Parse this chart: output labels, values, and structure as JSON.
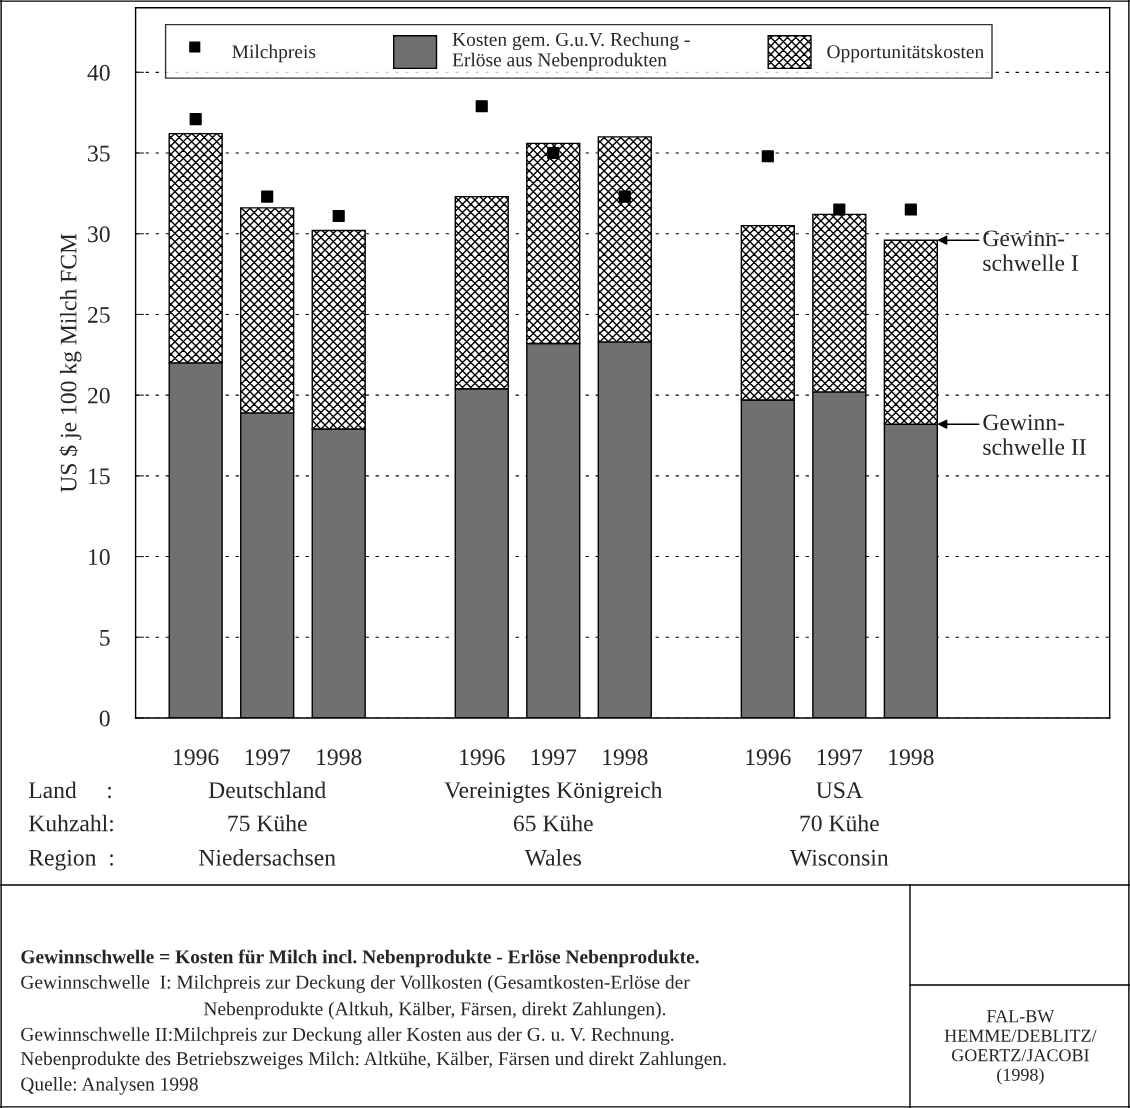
{
  "chart_data": {
    "type": "bar",
    "stacked": true,
    "ylabel": "US $ je 100 kg Milch FCM",
    "categories": [
      "1996",
      "1997",
      "1998",
      null,
      "1996",
      "1997",
      "1998",
      null,
      "1996",
      "1997",
      "1998"
    ],
    "series": [
      {
        "name": "Kosten gem. G.u.V. Rechung -\nErlöse aus Nebenprodukten",
        "color": "#707070",
        "values": [
          22.0,
          18.9,
          17.9,
          null,
          20.4,
          23.2,
          23.3,
          null,
          19.7,
          20.2,
          18.2
        ]
      },
      {
        "name": "Opportunitätskosten",
        "color": "#000000",
        "values": [
          14.2,
          12.7,
          12.3,
          null,
          11.9,
          12.4,
          12.7,
          null,
          10.8,
          11.0,
          11.4
        ]
      },
      {
        "name": "Milchpreis",
        "type": "scatter",
        "color": "#000000",
        "marker": "square",
        "values": [
          37.1,
          32.3,
          31.1,
          null,
          37.9,
          35.0,
          32.3,
          null,
          34.8,
          31.5,
          31.5
        ]
      }
    ],
    "ylim": [
      0,
      44
    ],
    "yticks": [
      0,
      5,
      10,
      15,
      20,
      25,
      30,
      35,
      40
    ],
    "grid": "y",
    "legend": "top",
    "annotations": [
      "Land     :",
      "Kuhzahl:",
      "Region  :",
      "Deutschland",
      "Vereinigtes Königreich",
      "USA",
      "75 Kühe",
      "65 Kühe",
      "70 Kühe",
      "Niedersachsen",
      "Wales",
      "Wisconsin",
      "Gewinn-\nschwelle I",
      "Gewinn-\nschwelle II",
      "Gewinnschwelle = Kosten für Milch incl. Nebenprodukte - Erlöse Nebenprodukte.",
      "Gewinnschwelle  I: Milchpreis zur Deckung der Vollkosten (Gesamtkosten-Erlöse der",
      "Nebenprodukte (Altkuh, Kälber, Färsen, direkt Zahlungen).",
      "Gewinnschwelle II:Milchpreis zur Deckung aller Kosten aus der G. u. V. Rechnung.",
      "Nebenprodukte des Betriebszweiges Milch: Altkühe, Kälber, Färsen und direkt Zahlungen.",
      "Quelle: Analysen 1998",
      "FAL-BW\nHEMME/DEBLITZ/\nGOERTZ/JACOBI\n(1998)"
    ]
  }
}
